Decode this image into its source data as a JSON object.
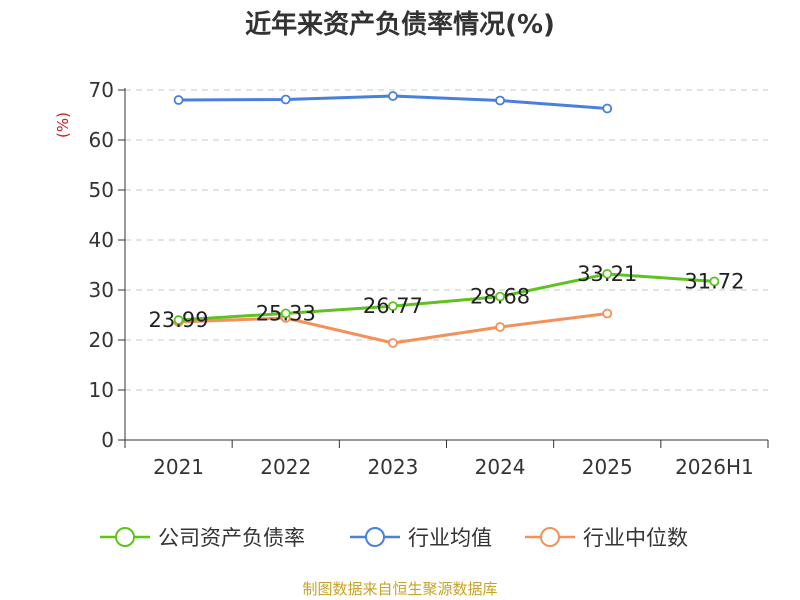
{
  "chart_data": {
    "type": "line",
    "title": "近年来资产负债率情况(%)",
    "y_unit": "(%)",
    "categories": [
      "2021",
      "2022",
      "2023",
      "2024",
      "2025",
      "2026H1"
    ],
    "ylim": [
      0,
      70
    ],
    "y_ticks": [
      "0",
      "10",
      "20",
      "30",
      "40",
      "50",
      "60",
      "70"
    ],
    "grid": true,
    "legend_position": "bottom",
    "series": [
      {
        "name": "公司资产负债率",
        "color": "#5fc31f",
        "values": [
          23.99,
          25.33,
          26.77,
          28.68,
          33.21,
          31.72
        ],
        "labels": [
          "23.99",
          "25.33",
          "26.77",
          "28.68",
          "33.21",
          "31.72"
        ]
      },
      {
        "name": "行业均值",
        "color": "#4a7fdb",
        "values": [
          68.0,
          68.1,
          68.8,
          67.9,
          66.3,
          null
        ]
      },
      {
        "name": "行业中位数",
        "color": "#f49059",
        "values": [
          23.6,
          24.4,
          19.4,
          22.6,
          25.3,
          null
        ]
      }
    ]
  },
  "colors": {
    "unit_label": "#d01c1c",
    "source": "#c9a227",
    "axis": "#333333",
    "grid": "#c8c8c8"
  },
  "footer": {
    "source": "制图数据来自恒生聚源数据库"
  }
}
